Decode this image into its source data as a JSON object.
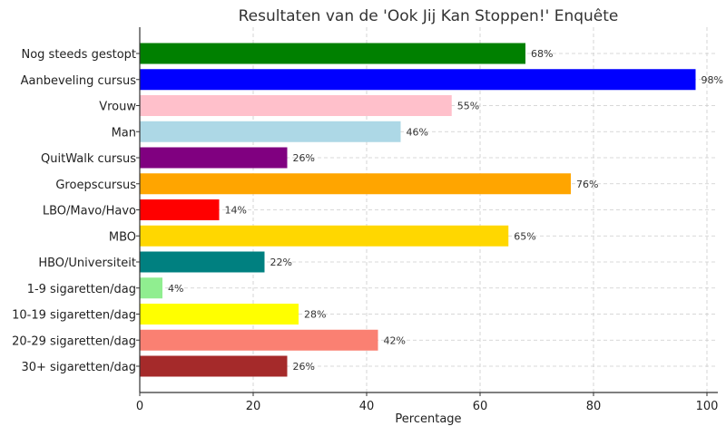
{
  "chart_data": {
    "type": "bar",
    "orientation": "horizontal",
    "title": "Resultaten van de 'Ook Jij Kan Stoppen!' Enquête",
    "xlabel": "Percentage",
    "ylabel": "",
    "xlim": [
      0,
      103
    ],
    "xticks": [
      0,
      20,
      40,
      60,
      80,
      100
    ],
    "grid": true,
    "categories": [
      "Nog steeds gestopt",
      "Aanbeveling cursus",
      "Vrouw",
      "Man",
      "QuitWalk cursus",
      "Groepscursus",
      "LBO/Mavo/Havo",
      "MBO",
      "HBO/Universiteit",
      "1-9 sigaretten/dag",
      "10-19 sigaretten/dag",
      "20-29 sigaretten/dag",
      "30+ sigaretten/dag"
    ],
    "values": [
      68,
      98,
      55,
      46,
      26,
      76,
      14,
      65,
      22,
      4,
      28,
      42,
      26
    ],
    "data_labels": [
      "68%",
      "98%",
      "55%",
      "46%",
      "26%",
      "76%",
      "14%",
      "65%",
      "22%",
      "4%",
      "28%",
      "42%",
      "26%"
    ],
    "colors": [
      "#008000",
      "#0000ff",
      "#ffc0cb",
      "#add8e6",
      "#800080",
      "#ffa500",
      "#ff0000",
      "#ffd700",
      "#008080",
      "#90ee90",
      "#ffff00",
      "#fa8072",
      "#a52a2a"
    ]
  }
}
